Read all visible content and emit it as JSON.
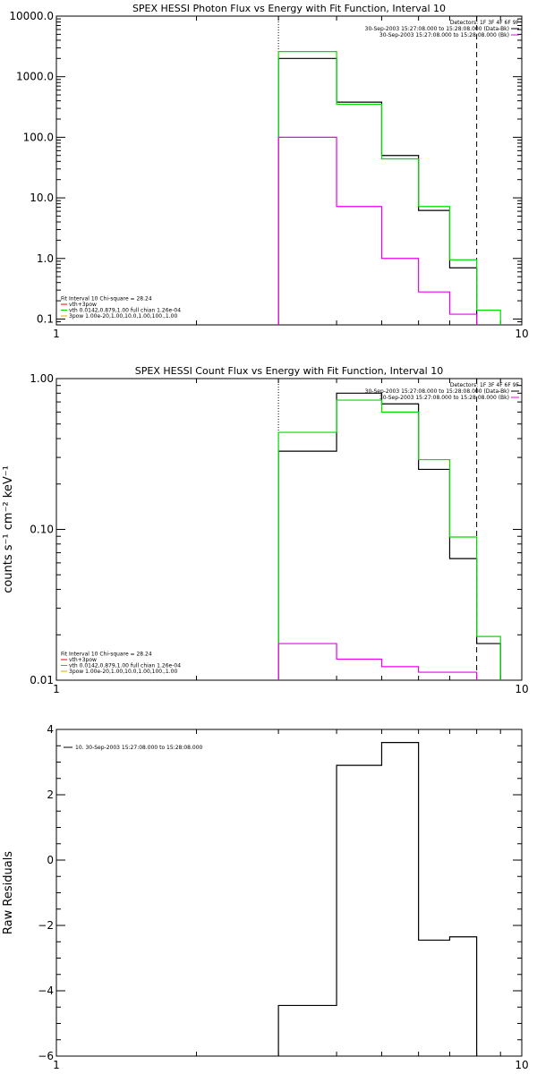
{
  "chart_data": [
    {
      "type": "line",
      "title": "SPEX HESSI Photon Flux vs Energy with Fit Function, Interval 10",
      "ylabel": "",
      "xscale": "log",
      "yscale": "log",
      "xlim": [
        1,
        10
      ],
      "ylim": [
        0.08,
        10000
      ],
      "x_ticks": [
        {
          "v": 1,
          "t": "1"
        },
        {
          "v": 10,
          "t": "10"
        }
      ],
      "y_ticks": [
        {
          "v": 0.1,
          "t": "0.1"
        },
        {
          "v": 1,
          "t": "1.0"
        },
        {
          "v": 10,
          "t": "10.0"
        },
        {
          "v": 100,
          "t": "100.0"
        },
        {
          "v": 1000,
          "t": "1000.0"
        },
        {
          "v": 10000,
          "t": "10000.0"
        }
      ],
      "vlines": [
        {
          "x": 3.0,
          "style": "dotted",
          "color": "#000000"
        },
        {
          "x": 8.0,
          "style": "dashed",
          "color": "#000000"
        }
      ],
      "bin_edges": [
        3,
        4,
        5,
        6,
        7,
        8,
        9
      ],
      "series": [
        {
          "name": "",
          "color": "#000000",
          "values": [
            2000,
            380,
            50,
            6.2,
            0.7,
            null
          ]
        },
        {
          "name": "",
          "color": "#00dd00",
          "values": [
            2600,
            350,
            44,
            7.2,
            0.95,
            0.14
          ]
        },
        {
          "name": "",
          "color": "#ee00ee",
          "values": [
            100,
            7.2,
            1.0,
            0.28,
            0.12,
            null
          ]
        }
      ],
      "legend_top_right": [
        {
          "text": "Detectors: 1F 3F 4F 6F 9F",
          "color": ""
        },
        {
          "text": "30-Sep-2003 15:27:08.000 to 15:28:08.000 (Data-Bk)",
          "color": "#000000"
        },
        {
          "text": "30-Sep-2003 15:27:08.000 to 15:28:08.000 (Bk)",
          "color": "#ee00ee"
        }
      ],
      "legend_bottom_left": [
        {
          "text": "Fit Interval 10    Chi-square = 28.24",
          "color": ""
        },
        {
          "text": "vth+3pow",
          "color": "#ee0000"
        },
        {
          "text": "vth 0.0142,0.879,1.00  full chian 1.26e-04",
          "color": "#00dd00"
        },
        {
          "text": "3pow 1.00e-20,1.00,10.0,1.00,100.,1.00",
          "color": "#ddaa00"
        }
      ]
    },
    {
      "type": "line",
      "title": "SPEX HESSI Count Flux vs Energy with Fit Function, Interval 10",
      "ylabel": "counts s⁻¹ cm⁻² keV⁻¹",
      "xscale": "log",
      "yscale": "log",
      "xlim": [
        1,
        10
      ],
      "ylim": [
        0.01,
        1.0
      ],
      "x_ticks": [
        {
          "v": 1,
          "t": "1"
        },
        {
          "v": 10,
          "t": "10"
        }
      ],
      "y_ticks": [
        {
          "v": 0.01,
          "t": "0.01"
        },
        {
          "v": 0.1,
          "t": "0.10"
        },
        {
          "v": 1,
          "t": "1.00"
        }
      ],
      "vlines": [
        {
          "x": 3.0,
          "style": "dotted",
          "color": "#000000"
        },
        {
          "x": 8.0,
          "style": "dashed",
          "color": "#000000"
        }
      ],
      "bin_edges": [
        3,
        4,
        5,
        6,
        7,
        8,
        9
      ],
      "series": [
        {
          "name": "",
          "color": "#000000",
          "values": [
            0.33,
            0.8,
            0.68,
            0.25,
            0.064,
            0.0175
          ]
        },
        {
          "name": "",
          "color": "#00dd00",
          "values": [
            0.44,
            0.72,
            0.6,
            0.29,
            0.089,
            0.0195
          ]
        },
        {
          "name": "",
          "color": "#ee00ee",
          "values": [
            0.0175,
            0.0138,
            0.0123,
            0.0113,
            0.0113,
            null
          ]
        }
      ],
      "legend_top_right": [
        {
          "text": "Detectors: 1F 3F 4F 6F 9F",
          "color": ""
        },
        {
          "text": "30-Sep-2003 15:27:08.000 to 15:28:08.000 (Data-Bk)",
          "color": "#000000"
        },
        {
          "text": "30-Sep-2003 15:27:08.000 to 15:28:08.000 (Bk)",
          "color": "#ee00ee"
        }
      ],
      "legend_bottom_left": [
        {
          "text": "Fit Interval 10    Chi-square = 28.24",
          "color": ""
        },
        {
          "text": "vth+3pow",
          "color": "#ee0000"
        },
        {
          "text": "vth 0.0142,0.879,1.00  full chian 1.26e-04",
          "color": "#00dd00"
        },
        {
          "text": "3pow 1.00e-20,1.00,10.0,1.00,100.,1.00",
          "color": "#ddaa00"
        }
      ]
    },
    {
      "type": "line",
      "title": "",
      "ylabel": "Raw Residuals",
      "xscale": "log",
      "yscale": "linear",
      "xlim": [
        1,
        10
      ],
      "ylim": [
        -6,
        4
      ],
      "x_ticks": [
        {
          "v": 1,
          "t": "1"
        },
        {
          "v": 10,
          "t": "10"
        }
      ],
      "y_ticks": [
        {
          "v": -6,
          "t": "−6"
        },
        {
          "v": -4,
          "t": "−4"
        },
        {
          "v": -2,
          "t": "−2"
        },
        {
          "v": 0,
          "t": "0"
        },
        {
          "v": 2,
          "t": "2"
        },
        {
          "v": 4,
          "t": "4"
        }
      ],
      "vlines": [],
      "bin_edges": [
        3,
        4,
        5,
        6,
        7,
        8
      ],
      "series": [
        {
          "name": "10. 30-Sep-2003 15:27:08.000 to 15:28:08.000",
          "color": "#000000",
          "values": [
            -4.45,
            2.9,
            3.6,
            -2.45,
            -2.35
          ]
        }
      ],
      "legend_top_left": [
        {
          "text": "10. 30-Sep-2003 15:27:08.000 to 15:28:08.000",
          "color": "#000000"
        }
      ]
    }
  ]
}
